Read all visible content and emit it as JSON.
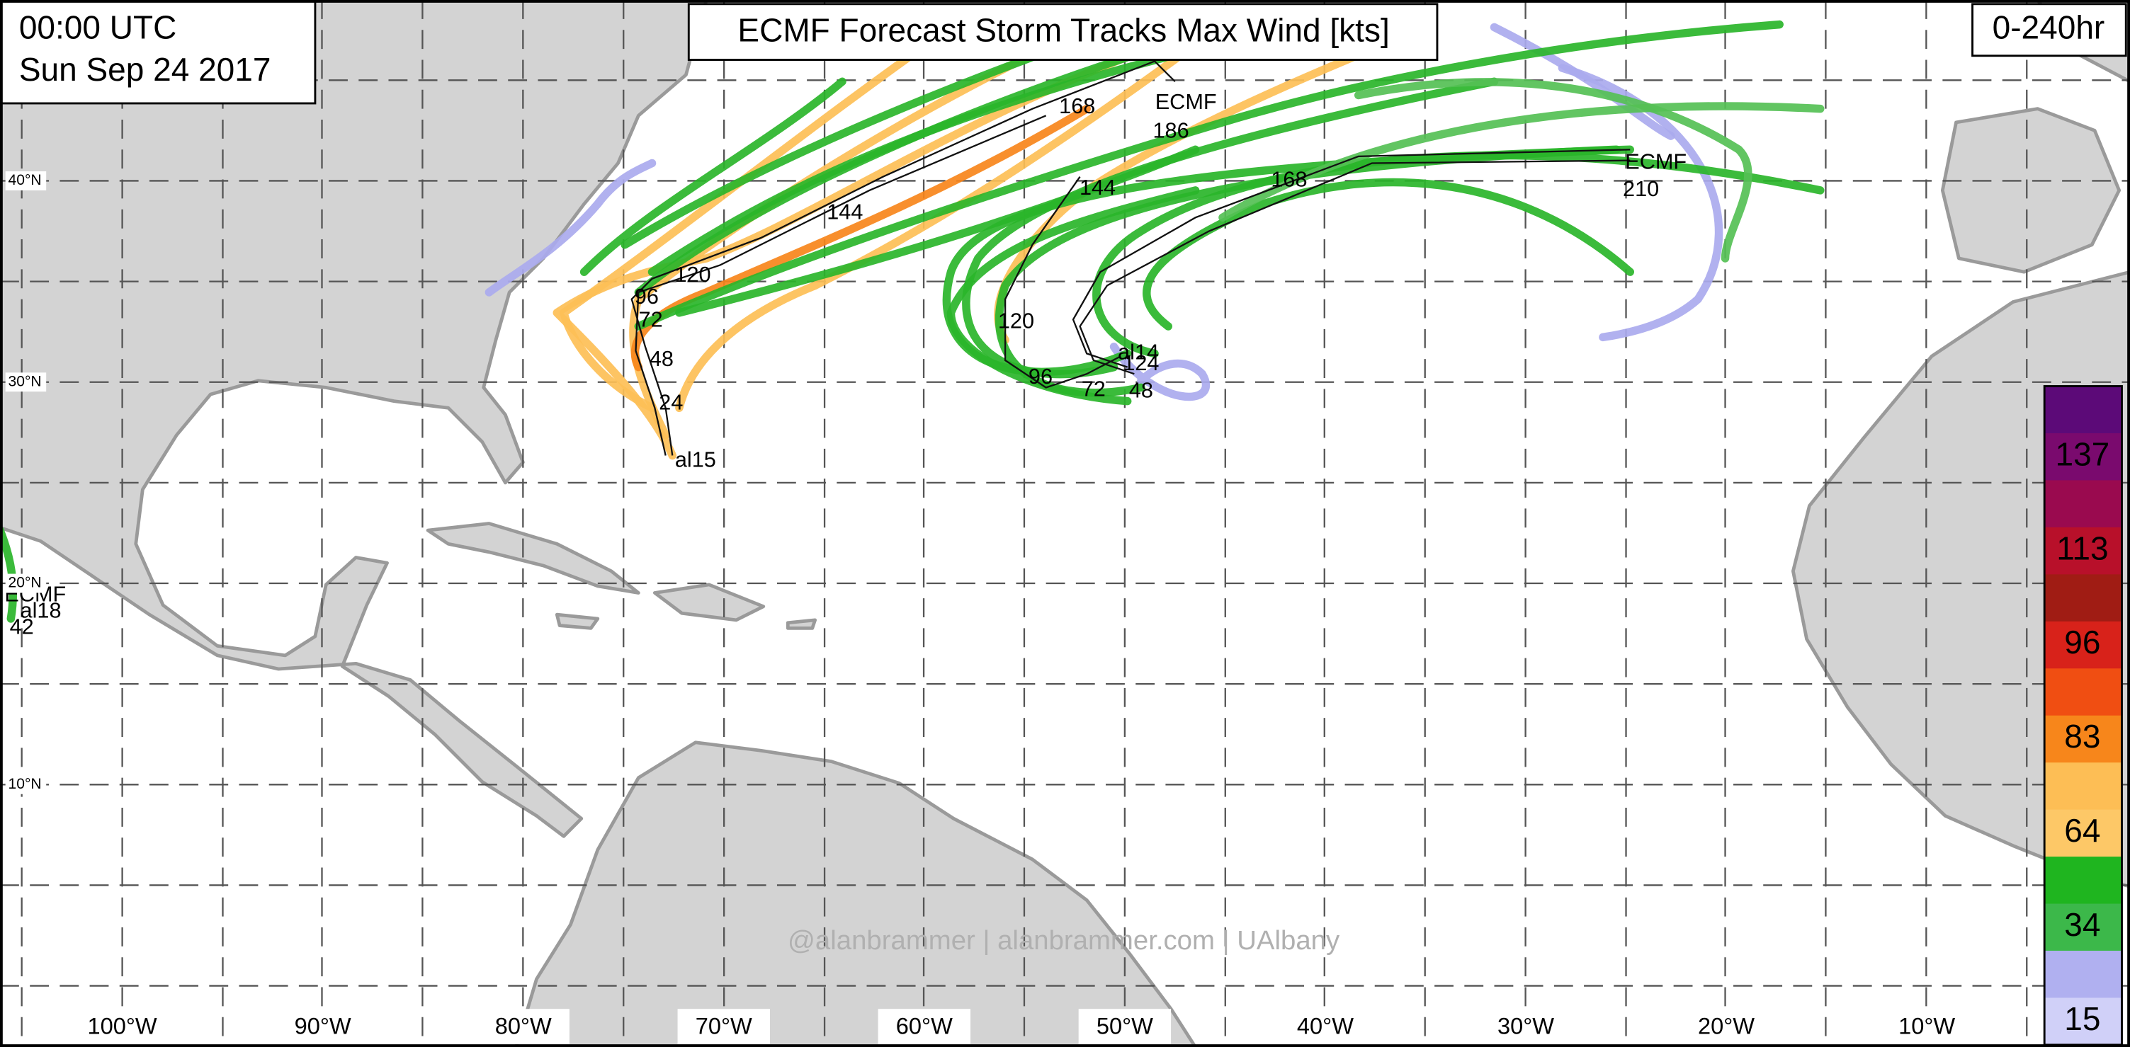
{
  "header": {
    "time": "00:00 UTC",
    "date": "Sun Sep 24 2017",
    "title": "ECMF Forecast Storm Tracks Max Wind [kts]",
    "range": "0-240hr"
  },
  "latitude_labels": [
    "40°N",
    "30°N",
    "20°N",
    "10°N"
  ],
  "longitude_labels": [
    "100°W",
    "90°W",
    "80°W",
    "70°W",
    "60°W",
    "50°W",
    "40°W",
    "30°W",
    "20°W",
    "10°W"
  ],
  "track_labels": [
    "168",
    "ECMF",
    "186",
    "144",
    "120",
    "96",
    "72",
    "48",
    "24",
    "al15",
    "144",
    "168",
    "ECMF",
    "210",
    "120",
    "96",
    "72",
    "48",
    "124",
    "al14",
    "ECMF",
    "al18",
    "42"
  ],
  "legend": {
    "levels": [
      "137",
      "113",
      "96",
      "83",
      "64",
      "34",
      "15"
    ]
  },
  "watermark": "@alanbrammer | alanbrammer.com | UAlbany"
}
